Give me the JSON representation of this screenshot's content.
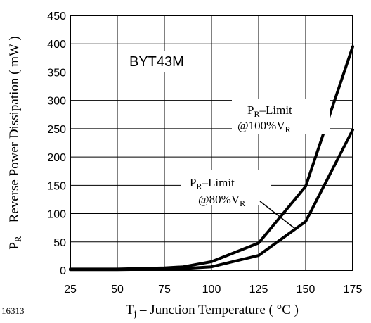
{
  "chart_data": {
    "type": "line",
    "title": "",
    "annotation": "BYT43M",
    "figure_id": "16313",
    "xlabel": {
      "main": "T",
      "sub": "j",
      "rest": " – Junction Temperature ( °C )"
    },
    "ylabel": {
      "main": "P",
      "sub": "R",
      "rest": " – Reverse Power Dissipation ( mW )"
    },
    "xlim": [
      25,
      175
    ],
    "ylim": [
      0,
      450
    ],
    "xticks": [
      25,
      50,
      75,
      100,
      125,
      150,
      175
    ],
    "yticks": [
      0,
      50,
      100,
      150,
      200,
      250,
      300,
      350,
      400,
      450
    ],
    "grid": true,
    "series": [
      {
        "label": {
          "line1_main": "P",
          "line1_sub": "R",
          "line1_rest": "–Limit",
          "line2_main": "@100%V",
          "line2_sub": "R"
        },
        "x": [
          25,
          50,
          75,
          85,
          100,
          125,
          150,
          175
        ],
        "y": [
          2,
          2,
          4,
          6,
          15,
          48,
          148,
          395
        ]
      },
      {
        "label": {
          "line1_main": "P",
          "line1_sub": "R",
          "line1_rest": "–Limit",
          "line2_main": "@80%V",
          "line2_sub": "R"
        },
        "x": [
          25,
          50,
          75,
          85,
          100,
          125,
          150,
          175
        ],
        "y": [
          1,
          1,
          2,
          3,
          6,
          26,
          86,
          248
        ]
      }
    ]
  }
}
